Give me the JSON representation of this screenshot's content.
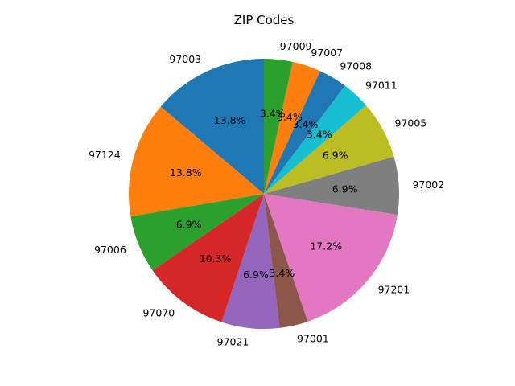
{
  "chart_data": {
    "type": "pie",
    "title": "ZIP Codes",
    "start_angle_deg": 90,
    "direction": "counterclockwise",
    "slices": [
      {
        "label": "97003",
        "value": 13.8,
        "pct_label": "13.8%",
        "color": "#1f77b4"
      },
      {
        "label": "97124",
        "value": 13.8,
        "pct_label": "13.8%",
        "color": "#ff7f0e"
      },
      {
        "label": "97006",
        "value": 6.9,
        "pct_label": "6.9%",
        "color": "#2ca02c"
      },
      {
        "label": "97070",
        "value": 10.3,
        "pct_label": "10.3%",
        "color": "#d62728"
      },
      {
        "label": "97021",
        "value": 6.9,
        "pct_label": "6.9%",
        "color": "#9467bd"
      },
      {
        "label": "97001",
        "value": 3.4,
        "pct_label": "3.4%",
        "color": "#8c564b"
      },
      {
        "label": "97201",
        "value": 17.2,
        "pct_label": "17.2%",
        "color": "#e377c2"
      },
      {
        "label": "97002",
        "value": 6.9,
        "pct_label": "6.9%",
        "color": "#7f7f7f"
      },
      {
        "label": "97005",
        "value": 6.9,
        "pct_label": "6.9%",
        "color": "#bcbd22"
      },
      {
        "label": "97011",
        "value": 3.4,
        "pct_label": "3.4%",
        "color": "#17becf"
      },
      {
        "label": "97008",
        "value": 3.4,
        "pct_label": "3.4%",
        "color": "#1f77b4"
      },
      {
        "label": "97007",
        "value": 3.4,
        "pct_label": "3.4%",
        "color": "#ff7f0e"
      },
      {
        "label": "97009",
        "value": 3.4,
        "pct_label": "3.4%",
        "color": "#2ca02c"
      }
    ]
  }
}
